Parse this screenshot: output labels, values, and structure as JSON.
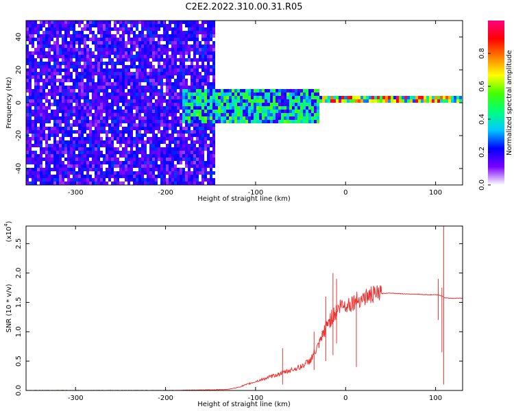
{
  "title": "C2E2.2022.310.00.31.R05",
  "chart_data": [
    {
      "type": "heatmap",
      "xlabel": "Height of straight line (km)",
      "ylabel": "Frequency (Hz)",
      "xlim": [
        -355,
        130
      ],
      "ylim": [
        -50,
        50
      ],
      "x_ticks": [
        -300,
        -200,
        -100,
        0,
        100
      ],
      "y_ticks": [
        -40,
        -20,
        0,
        20,
        40
      ],
      "x_tick_labels": [
        "-300",
        "-200",
        "-100",
        "0",
        "100"
      ],
      "y_tick_labels": [
        "-40",
        "-20",
        "0",
        "20",
        "40"
      ],
      "colorbar": {
        "label": "Normalized spectral amplitude",
        "range": [
          0,
          1
        ],
        "ticks": [
          0.0,
          0.2,
          0.4,
          0.6,
          0.8
        ],
        "tick_labels": [
          "0.0",
          "0.2",
          "0.4",
          "0.6",
          "0.8"
        ],
        "colormap": [
          "#ffffff",
          "#7a00ff",
          "#0000ff",
          "#00c8ff",
          "#00ff80",
          "#40ff00",
          "#ffff00",
          "#ff8000",
          "#ff0000",
          "#ff0080"
        ]
      },
      "description_regions": [
        {
          "x_range": [
            -355,
            -145
          ],
          "freq_range": [
            -50,
            50
          ],
          "level": 0.2
        },
        {
          "x_range": [
            -180,
            -30
          ],
          "freq_range": [
            -12,
            8
          ],
          "level": 0.45
        },
        {
          "x_range": [
            -30,
            130
          ],
          "freq_range": [
            -1,
            4
          ],
          "level": 0.75
        }
      ]
    },
    {
      "type": "line",
      "xlabel": "Height of straight line (km)",
      "ylabel": "SNR (10 * v/v)",
      "y_multiplier_label": "(x10",
      "y_multiplier_exp": "4",
      "xlim": [
        -355,
        130
      ],
      "ylim": [
        0,
        2.8
      ],
      "x_ticks": [
        -300,
        -200,
        -100,
        0,
        100
      ],
      "y_ticks": [
        0.0,
        0.5,
        1.0,
        1.5,
        2.0,
        2.5
      ],
      "x_tick_labels": [
        "-300",
        "-200",
        "-100",
        "0",
        "100"
      ],
      "y_tick_labels": [
        "0.0",
        "0.5",
        "1.0",
        "1.5",
        "2.0",
        "2.5"
      ],
      "line_color": "#ee3333",
      "series": [
        {
          "x": [
            -355,
            -300,
            -250,
            -200,
            -150,
            -130,
            -120,
            -110,
            -100,
            -90,
            -80,
            -70,
            -60,
            -50,
            -40,
            -30,
            -25,
            -20,
            -15,
            -10,
            -5,
            0,
            5,
            10,
            20,
            30,
            40,
            50,
            60,
            70,
            80,
            90,
            100,
            105,
            108,
            110,
            115,
            120,
            130
          ],
          "values": [
            0.0,
            0.0,
            0.0,
            0.0,
            0.01,
            0.02,
            0.05,
            0.1,
            0.15,
            0.2,
            0.25,
            0.3,
            0.35,
            0.4,
            0.5,
            0.75,
            0.95,
            1.15,
            1.25,
            1.35,
            1.45,
            1.45,
            1.48,
            1.52,
            1.58,
            1.63,
            1.65,
            1.66,
            1.65,
            1.64,
            1.64,
            1.63,
            1.63,
            1.62,
            1.6,
            1.58,
            1.57,
            1.57,
            1.57
          ]
        }
      ],
      "spikes": [
        {
          "x": -70,
          "values": [
            0.72,
            0.1
          ]
        },
        {
          "x": -35,
          "values": [
            1.0,
            0.35
          ]
        },
        {
          "x": -22,
          "values": [
            1.6,
            0.5
          ]
        },
        {
          "x": -14,
          "values": [
            2.0,
            0.6
          ]
        },
        {
          "x": -10,
          "values": [
            1.9,
            0.8
          ]
        },
        {
          "x": 12,
          "values": [
            0.4,
            1.6
          ]
        },
        {
          "x": 103,
          "values": [
            1.9,
            1.2
          ]
        },
        {
          "x": 107,
          "values": [
            0.65,
            1.75
          ]
        },
        {
          "x": 109,
          "values": [
            2.8,
            0.1
          ]
        }
      ]
    }
  ]
}
